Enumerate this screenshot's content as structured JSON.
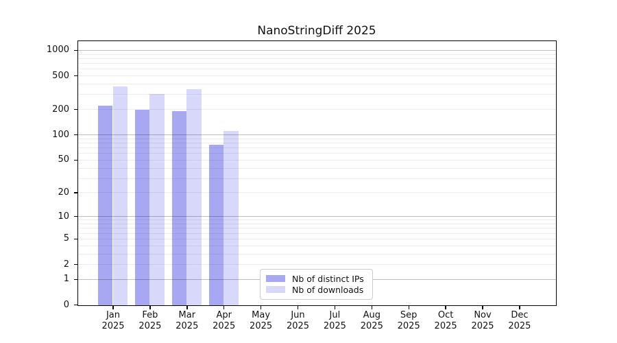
{
  "chart_data": {
    "type": "bar",
    "title": "NanoStringDiff 2025",
    "categories": [
      "Jan",
      "Feb",
      "Mar",
      "Apr",
      "May",
      "Jun",
      "Jul",
      "Aug",
      "Sep",
      "Oct",
      "Nov",
      "Dec"
    ],
    "year_label": "2025",
    "series": [
      {
        "name": "Nb of distinct IPs",
        "color": "#a8a8f2",
        "values": [
          225,
          199,
          194,
          77,
          null,
          null,
          null,
          null,
          null,
          null,
          null,
          null
        ]
      },
      {
        "name": "Nb of downloads",
        "color": "#d8d8fa",
        "values": [
          376,
          307,
          348,
          112,
          null,
          null,
          null,
          null,
          null,
          null,
          null,
          null
        ]
      }
    ],
    "y_axis": {
      "scale": "log10(1+x)",
      "ticks": [
        0,
        1,
        2,
        5,
        10,
        20,
        50,
        100,
        200,
        500,
        1000
      ],
      "major_gridlines": [
        1,
        10,
        100,
        1000
      ],
      "ylim": [
        0,
        1280
      ]
    },
    "x_axis": {
      "tick_label_lines": 2
    },
    "legend_position": "lower center",
    "grid": true
  },
  "colors": {
    "background": "#ffffff",
    "spine": "#000000",
    "major_grid": "rgba(0,0,0,0.25)",
    "minor_grid": "rgba(0,0,0,0.075)",
    "legend_border": "#cccccc",
    "text": "#111111"
  }
}
